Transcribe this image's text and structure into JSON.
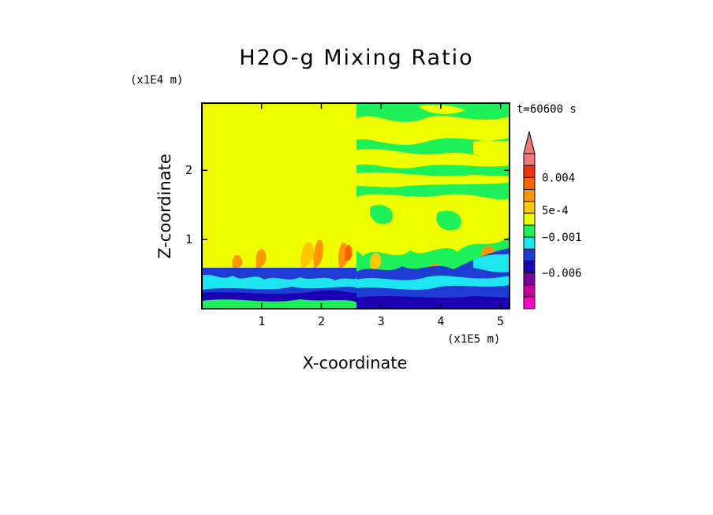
{
  "chart_data": {
    "type": "heatmap",
    "title": "H2O-g Mixing Ratio",
    "xlabel": "X-coordinate",
    "ylabel": "Z-coordinate",
    "x_unit": "(x1E5 m)",
    "y_unit": "(x1E4 m)",
    "timestamp": "t=60600 s",
    "xlim": [
      0,
      5.15
    ],
    "ylim": [
      0,
      2.97
    ],
    "x_ticks": [
      1,
      2,
      3,
      4,
      5
    ],
    "y_ticks": [
      1,
      2
    ],
    "x_tick_labels": [
      "1",
      "2",
      "3",
      "4",
      "5"
    ],
    "y_tick_labels": [
      "1",
      "2"
    ],
    "colorbar": {
      "tick_labels": [
        "0.004",
        "5e-4",
        "−0.001",
        "−0.006"
      ],
      "extend": "max",
      "bands": [
        {
          "color": "#ff00c8"
        },
        {
          "color": "#c8009b"
        },
        {
          "color": "#7800a0"
        },
        {
          "color": "#1e00b4"
        },
        {
          "color": "#1f3cd2"
        },
        {
          "color": "#1ee6f0"
        },
        {
          "color": "#1ef05a"
        },
        {
          "color": "#f0ff00"
        },
        {
          "color": "#ffc800"
        },
        {
          "color": "#ff9600"
        },
        {
          "color": "#ff6400"
        },
        {
          "color": "#f03214"
        },
        {
          "color": "#f07878"
        }
      ]
    }
  }
}
